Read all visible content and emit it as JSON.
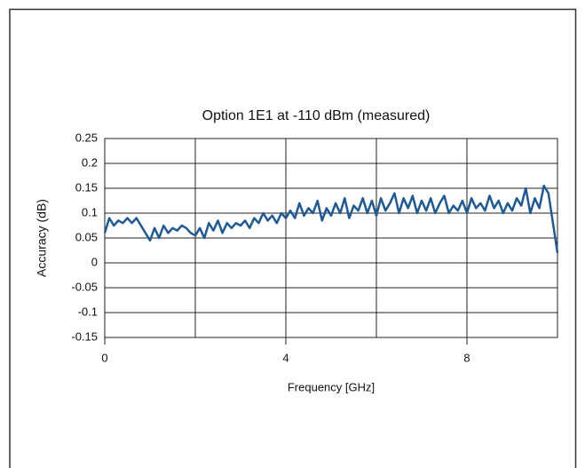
{
  "chart_data": {
    "type": "line",
    "title": "Option 1E1 at -110 dBm (measured)",
    "x_label": "Frequency [GHz]",
    "y_label": "Accuracy (dB)",
    "x": [
      0,
      0.1,
      0.2,
      0.3,
      0.4,
      0.5,
      0.6,
      0.7,
      0.8,
      0.9,
      1,
      1.1,
      1.2,
      1.3,
      1.4,
      1.5,
      1.6,
      1.7,
      1.8,
      1.9,
      2,
      2.1,
      2.2,
      2.3,
      2.4,
      2.5,
      2.6,
      2.7,
      2.8,
      2.9,
      3,
      3.1,
      3.2,
      3.3,
      3.4,
      3.5,
      3.6,
      3.7,
      3.8,
      3.9,
      4,
      4.1,
      4.2,
      4.3,
      4.4,
      4.5,
      4.6,
      4.7,
      4.8,
      4.9,
      5,
      5.1,
      5.2,
      5.3,
      5.4,
      5.5,
      5.6,
      5.7,
      5.8,
      5.9,
      6,
      6.1,
      6.2,
      6.3,
      6.4,
      6.5,
      6.6,
      6.7,
      6.8,
      6.9,
      7,
      7.1,
      7.2,
      7.3,
      7.4,
      7.5,
      7.6,
      7.7,
      7.8,
      7.9,
      8,
      8.1,
      8.2,
      8.3,
      8.4,
      8.5,
      8.6,
      8.7,
      8.8,
      8.9,
      9,
      9.1,
      9.2,
      9.3,
      9.4,
      9.5,
      9.6,
      9.7,
      9.8,
      9.9,
      10
    ],
    "series": [
      {
        "color": "#1f5a96",
        "values": [
          0.06,
          0.09,
          0.075,
          0.085,
          0.08,
          0.09,
          0.08,
          0.09,
          0.075,
          0.06,
          0.045,
          0.07,
          0.05,
          0.075,
          0.06,
          0.07,
          0.065,
          0.075,
          0.07,
          0.06,
          0.055,
          0.07,
          0.05,
          0.08,
          0.065,
          0.085,
          0.06,
          0.08,
          0.07,
          0.08,
          0.075,
          0.085,
          0.07,
          0.09,
          0.08,
          0.1,
          0.085,
          0.095,
          0.08,
          0.1,
          0.09,
          0.105,
          0.09,
          0.12,
          0.095,
          0.11,
          0.1,
          0.125,
          0.085,
          0.11,
          0.095,
          0.12,
          0.1,
          0.13,
          0.09,
          0.115,
          0.105,
          0.13,
          0.1,
          0.125,
          0.095,
          0.13,
          0.105,
          0.12,
          0.14,
          0.1,
          0.13,
          0.11,
          0.135,
          0.1,
          0.125,
          0.105,
          0.13,
          0.1,
          0.12,
          0.135,
          0.1,
          0.115,
          0.105,
          0.125,
          0.1,
          0.13,
          0.11,
          0.12,
          0.105,
          0.135,
          0.11,
          0.125,
          0.1,
          0.12,
          0.105,
          0.13,
          0.115,
          0.15,
          0.1,
          0.13,
          0.11,
          0.155,
          0.14,
          0.08,
          0.02
        ]
      }
    ],
    "xlim": [
      0,
      10
    ],
    "xticks": [
      0,
      4,
      8
    ],
    "x_minor_ticks": [
      2,
      6,
      10
    ],
    "ylim": [
      -0.15,
      0.25
    ],
    "yticks": [
      -0.15,
      -0.1,
      -0.05,
      0,
      0.05,
      0.1,
      0.15,
      0.2,
      0.25
    ],
    "grid": true
  }
}
